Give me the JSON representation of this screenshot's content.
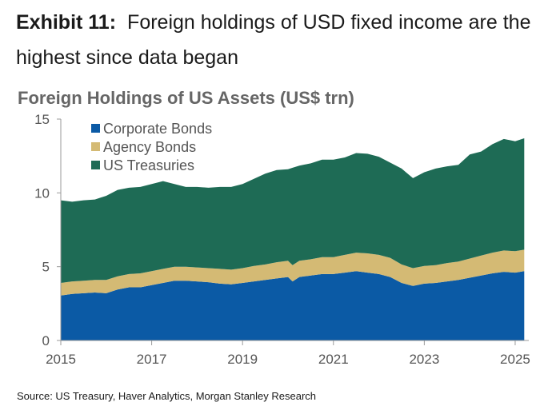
{
  "exhibit": {
    "label": "Exhibit 11:",
    "title": "Foreign holdings of USD fixed income are the highest since data began"
  },
  "source": "Source: US Treasury, Haver Analytics, Morgan Stanley Research",
  "chart_data": {
    "type": "area",
    "stacked": true,
    "title": "Foreign Holdings of US Assets (US$ trn)",
    "xlabel": "",
    "ylabel": "",
    "xlim": [
      2015,
      2025.3
    ],
    "ylim": [
      0,
      15
    ],
    "yticks": [
      0,
      5,
      10,
      15
    ],
    "xticks": [
      2015,
      2017,
      2019,
      2021,
      2023,
      2025
    ],
    "grid": false,
    "legend_position": "top-left",
    "x": [
      2015.0,
      2015.25,
      2015.5,
      2015.75,
      2016.0,
      2016.25,
      2016.5,
      2016.75,
      2017.0,
      2017.25,
      2017.5,
      2017.75,
      2018.0,
      2018.25,
      2018.5,
      2018.75,
      2019.0,
      2019.25,
      2019.5,
      2019.75,
      2020.0,
      2020.1,
      2020.25,
      2020.5,
      2020.75,
      2021.0,
      2021.25,
      2021.5,
      2021.75,
      2022.0,
      2022.25,
      2022.5,
      2022.75,
      2023.0,
      2023.25,
      2023.5,
      2023.75,
      2024.0,
      2024.25,
      2024.5,
      2024.75,
      2025.0,
      2025.2
    ],
    "series": [
      {
        "name": "Corporate Bonds",
        "color": "#0b5aa5",
        "values": [
          3.05,
          3.15,
          3.2,
          3.25,
          3.2,
          3.45,
          3.6,
          3.6,
          3.75,
          3.9,
          4.05,
          4.05,
          4.0,
          3.95,
          3.85,
          3.8,
          3.9,
          4.0,
          4.1,
          4.2,
          4.3,
          4.0,
          4.3,
          4.4,
          4.5,
          4.5,
          4.6,
          4.7,
          4.6,
          4.5,
          4.3,
          3.9,
          3.7,
          3.85,
          3.9,
          4.0,
          4.1,
          4.25,
          4.4,
          4.55,
          4.65,
          4.6,
          4.7
        ]
      },
      {
        "name": "Agency Bonds",
        "color": "#d4ba74",
        "values": [
          0.85,
          0.85,
          0.85,
          0.85,
          0.9,
          0.9,
          0.9,
          0.95,
          0.95,
          0.95,
          0.95,
          0.95,
          0.95,
          0.95,
          1.0,
          1.0,
          1.0,
          1.05,
          1.05,
          1.1,
          1.1,
          1.1,
          1.1,
          1.1,
          1.15,
          1.15,
          1.2,
          1.25,
          1.3,
          1.3,
          1.3,
          1.25,
          1.2,
          1.2,
          1.2,
          1.25,
          1.25,
          1.3,
          1.35,
          1.4,
          1.45,
          1.45,
          1.45
        ]
      },
      {
        "name": "US Treasuries",
        "color": "#1e6b55",
        "values": [
          5.6,
          5.4,
          5.45,
          5.45,
          5.7,
          5.85,
          5.85,
          5.85,
          5.9,
          5.95,
          5.6,
          5.4,
          5.45,
          5.45,
          5.55,
          5.6,
          5.7,
          5.9,
          6.15,
          6.25,
          6.2,
          6.6,
          6.45,
          6.5,
          6.6,
          6.6,
          6.6,
          6.75,
          6.75,
          6.65,
          6.45,
          6.5,
          6.1,
          6.35,
          6.55,
          6.55,
          6.55,
          7.05,
          7.05,
          7.35,
          7.55,
          7.45,
          7.55
        ]
      }
    ]
  }
}
